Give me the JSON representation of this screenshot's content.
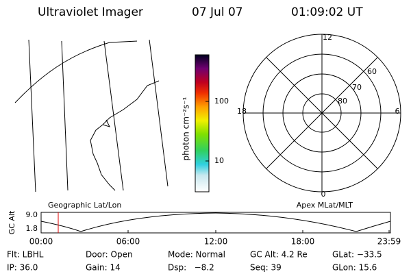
{
  "header": {
    "title": "Ultraviolet Imager",
    "date": "07 Jul 07",
    "time": "01:09:02 UT"
  },
  "colorbar": {
    "label": "photon cm⁻²s⁻¹",
    "ticks": [
      "100",
      "10"
    ]
  },
  "polar": {
    "labels": [
      "12",
      "60",
      "70",
      "80",
      "18",
      "6",
      "0"
    ]
  },
  "timeline": {
    "left_label": "Geographic Lat/Lon",
    "right_label": "Apex MLat/MLT",
    "y_label": "GC Alt",
    "y_ticks": [
      "9.0",
      "1.8"
    ],
    "x_ticks": [
      "00:00",
      "06:00",
      "12:00",
      "18:00",
      "23:59"
    ]
  },
  "info": [
    [
      "Flt: LBHL",
      "Door: Open",
      "Mode: Normal",
      "GC Alt: 4.2 Re",
      "GLat: −33.5"
    ],
    [
      "IP: 36.0",
      "Gain: 14",
      "Dsp:   −8.2",
      "Seq: 39",
      "GLon: 15.6"
    ]
  ]
}
